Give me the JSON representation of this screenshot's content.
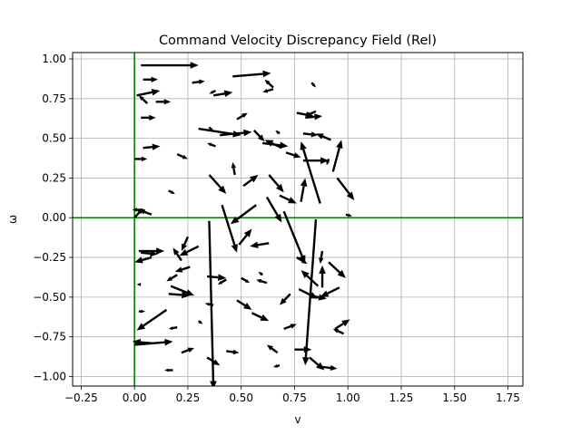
{
  "chart_data": {
    "type": "quiver",
    "title": "Command Velocity Discrepancy Field (Rel)",
    "xlabel": "v",
    "ylabel": "ω",
    "xlim": [
      -0.29,
      1.82
    ],
    "ylim": [
      -1.06,
      1.04
    ],
    "grid": true,
    "xticks": [
      -0.25,
      0.0,
      0.25,
      0.5,
      0.75,
      1.0,
      1.25,
      1.5,
      1.75
    ],
    "xtick_labels": [
      "−0.25",
      "0.00",
      "0.25",
      "0.50",
      "0.75",
      "1.00",
      "1.25",
      "1.50",
      "1.75"
    ],
    "yticks": [
      1.0,
      0.75,
      0.5,
      0.25,
      0.0,
      -0.25,
      -0.5,
      -0.75,
      -1.0
    ],
    "ytick_labels": [
      "1.00",
      "0.75",
      "0.50",
      "0.25",
      "0.00",
      "−0.25",
      "−0.50",
      "−0.75",
      "−1.00"
    ],
    "reference_lines": [
      {
        "orientation": "vertical",
        "value": 0.0,
        "color": "#008000"
      },
      {
        "orientation": "horizontal",
        "value": 0.0,
        "color": "#008000"
      }
    ],
    "arrow_color": "#000000",
    "arrows": [
      {
        "x": 0.03,
        "y": 0.96,
        "dx": 0.27,
        "dy": 0.0
      },
      {
        "x": 0.04,
        "y": 0.87,
        "dx": 0.07,
        "dy": 0.0
      },
      {
        "x": 0.27,
        "y": 0.85,
        "dx": 0.06,
        "dy": 0.01
      },
      {
        "x": 0.46,
        "y": 0.89,
        "dx": 0.18,
        "dy": 0.02
      },
      {
        "x": 0.65,
        "y": 0.82,
        "dx": -0.04,
        "dy": 0.05
      },
      {
        "x": 0.83,
        "y": 0.85,
        "dx": 0.02,
        "dy": -0.03
      },
      {
        "x": 0.01,
        "y": 0.77,
        "dx": 0.11,
        "dy": 0.03
      },
      {
        "x": 0.06,
        "y": 0.72,
        "dx": -0.04,
        "dy": 0.05
      },
      {
        "x": 0.1,
        "y": 0.73,
        "dx": 0.07,
        "dy": 0.0
      },
      {
        "x": 0.38,
        "y": 0.8,
        "dx": -0.03,
        "dy": -0.02
      },
      {
        "x": 0.37,
        "y": 0.77,
        "dx": 0.09,
        "dy": 0.02
      },
      {
        "x": 0.65,
        "y": 0.81,
        "dx": -0.05,
        "dy": -0.02
      },
      {
        "x": 0.03,
        "y": 0.63,
        "dx": 0.07,
        "dy": 0.0
      },
      {
        "x": 0.48,
        "y": 0.62,
        "dx": 0.05,
        "dy": 0.04
      },
      {
        "x": 0.76,
        "y": 0.66,
        "dx": 0.08,
        "dy": -0.02
      },
      {
        "x": 0.8,
        "y": 0.63,
        "dx": 0.08,
        "dy": 0.01
      },
      {
        "x": 0.85,
        "y": 0.67,
        "dx": -0.05,
        "dy": -0.03
      },
      {
        "x": 0.3,
        "y": 0.56,
        "dx": 0.2,
        "dy": -0.04
      },
      {
        "x": 0.35,
        "y": 0.57,
        "dx": 0.02,
        "dy": -0.03
      },
      {
        "x": 0.4,
        "y": 0.52,
        "dx": 0.15,
        "dy": 0.02
      },
      {
        "x": 0.56,
        "y": 0.55,
        "dx": 0.05,
        "dy": -0.07
      },
      {
        "x": 0.6,
        "y": 0.47,
        "dx": 0.12,
        "dy": -0.02
      },
      {
        "x": 0.68,
        "y": 0.53,
        "dx": -0.02,
        "dy": 0.02
      },
      {
        "x": 0.79,
        "y": 0.53,
        "dx": 0.07,
        "dy": -0.01
      },
      {
        "x": 0.92,
        "y": 0.49,
        "dx": -0.07,
        "dy": 0.04
      },
      {
        "x": 0.04,
        "y": 0.44,
        "dx": 0.08,
        "dy": 0.01
      },
      {
        "x": 0.38,
        "y": 0.45,
        "dx": -0.04,
        "dy": 0.02
      },
      {
        "x": 0.69,
        "y": 0.44,
        "dx": -0.08,
        "dy": 0.05
      },
      {
        "x": 0.71,
        "y": 0.41,
        "dx": 0.07,
        "dy": -0.03
      },
      {
        "x": 0.0,
        "y": 0.37,
        "dx": 0.06,
        "dy": 0.0
      },
      {
        "x": 0.2,
        "y": 0.4,
        "dx": 0.05,
        "dy": -0.03
      },
      {
        "x": 0.79,
        "y": 0.36,
        "dx": 0.12,
        "dy": 0.0
      },
      {
        "x": 0.91,
        "y": 0.37,
        "dx": -0.01,
        "dy": -0.04
      },
      {
        "x": 0.87,
        "y": 0.09,
        "dx": -0.09,
        "dy": 0.39
      },
      {
        "x": 0.93,
        "y": 0.29,
        "dx": 0.04,
        "dy": 0.2
      },
      {
        "x": 0.95,
        "y": 0.25,
        "dx": 0.08,
        "dy": -0.14
      },
      {
        "x": 0.35,
        "y": 0.27,
        "dx": 0.08,
        "dy": -0.12
      },
      {
        "x": 0.47,
        "y": 0.27,
        "dx": -0.01,
        "dy": 0.08
      },
      {
        "x": 0.51,
        "y": 0.2,
        "dx": 0.07,
        "dy": 0.07
      },
      {
        "x": 0.63,
        "y": 0.27,
        "dx": 0.07,
        "dy": -0.11
      },
      {
        "x": 0.68,
        "y": 0.14,
        "dx": 0.08,
        "dy": -0.05
      },
      {
        "x": 0.78,
        "y": 0.1,
        "dx": 0.02,
        "dy": 0.15
      },
      {
        "x": 0.16,
        "y": 0.17,
        "dx": 0.03,
        "dy": -0.02
      },
      {
        "x": 0.41,
        "y": 0.08,
        "dx": 0.07,
        "dy": -0.3
      },
      {
        "x": 0.62,
        "y": 0.13,
        "dx": 0.07,
        "dy": -0.16
      },
      {
        "x": 0.57,
        "y": 0.08,
        "dx": -0.12,
        "dy": -0.12
      },
      {
        "x": 0.7,
        "y": 0.04,
        "dx": 0.1,
        "dy": -0.33
      },
      {
        "x": 0.0,
        "y": 0.0,
        "dx": 0.04,
        "dy": 0.06
      },
      {
        "x": 0.04,
        "y": 0.05,
        "dx": -0.05,
        "dy": 0.0
      },
      {
        "x": 0.08,
        "y": 0.02,
        "dx": -0.06,
        "dy": 0.03
      },
      {
        "x": 0.99,
        "y": 0.02,
        "dx": 0.03,
        "dy": -0.01
      },
      {
        "x": 0.35,
        "y": -0.02,
        "dx": 0.02,
        "dy": -1.06
      },
      {
        "x": 0.85,
        "y": -0.01,
        "dx": -0.05,
        "dy": -0.92
      },
      {
        "x": 0.25,
        "y": -0.12,
        "dx": -0.03,
        "dy": -0.09
      },
      {
        "x": 0.49,
        "y": -0.17,
        "dx": 0.06,
        "dy": 0.1
      },
      {
        "x": 0.63,
        "y": -0.16,
        "dx": -0.09,
        "dy": -0.02
      },
      {
        "x": 0.02,
        "y": -0.21,
        "dx": 0.12,
        "dy": 0.0
      },
      {
        "x": 0.03,
        "y": -0.22,
        "dx": 0.08,
        "dy": -0.01
      },
      {
        "x": 0.3,
        "y": -0.18,
        "dx": -0.09,
        "dy": -0.06
      },
      {
        "x": 0.08,
        "y": -0.25,
        "dx": -0.08,
        "dy": -0.03
      },
      {
        "x": 0.22,
        "y": -0.27,
        "dx": -0.04,
        "dy": 0.08
      },
      {
        "x": 0.76,
        "y": -0.25,
        "dx": 0.05,
        "dy": -0.04
      },
      {
        "x": 0.88,
        "y": -0.21,
        "dx": -0.01,
        "dy": -0.08
      },
      {
        "x": 0.91,
        "y": -0.28,
        "dx": 0.08,
        "dy": -0.1
      },
      {
        "x": 0.26,
        "y": -0.31,
        "dx": -0.07,
        "dy": -0.03
      },
      {
        "x": 0.2,
        "y": -0.36,
        "dx": -0.05,
        "dy": -0.04
      },
      {
        "x": 0.86,
        "y": -0.43,
        "dx": -0.08,
        "dy": 0.1
      },
      {
        "x": 0.88,
        "y": -0.44,
        "dx": 0.0,
        "dy": 0.14
      },
      {
        "x": 0.34,
        "y": -0.37,
        "dx": 0.09,
        "dy": -0.01
      },
      {
        "x": 0.43,
        "y": -0.39,
        "dx": -0.04,
        "dy": -0.03
      },
      {
        "x": 0.5,
        "y": -0.38,
        "dx": 0.04,
        "dy": -0.03
      },
      {
        "x": 0.62,
        "y": -0.41,
        "dx": -0.05,
        "dy": 0.02
      },
      {
        "x": 0.6,
        "y": -0.36,
        "dx": -0.02,
        "dy": 0.02
      },
      {
        "x": 0.03,
        "y": -0.42,
        "dx": -0.02,
        "dy": 0.0
      },
      {
        "x": 0.17,
        "y": -0.43,
        "dx": 0.11,
        "dy": -0.06
      },
      {
        "x": 0.16,
        "y": -0.48,
        "dx": 0.1,
        "dy": -0.01
      },
      {
        "x": 0.37,
        "y": -0.55,
        "dx": -0.04,
        "dy": 0.01
      },
      {
        "x": 0.77,
        "y": -0.45,
        "dx": 0.09,
        "dy": -0.06
      },
      {
        "x": 0.82,
        "y": -0.49,
        "dx": 0.08,
        "dy": -0.02
      },
      {
        "x": 0.96,
        "y": -0.44,
        "dx": -0.09,
        "dy": -0.06
      },
      {
        "x": 0.48,
        "y": -0.52,
        "dx": 0.07,
        "dy": -0.06
      },
      {
        "x": 0.73,
        "y": -0.48,
        "dx": -0.05,
        "dy": -0.07
      },
      {
        "x": 0.02,
        "y": -0.59,
        "dx": 0.03,
        "dy": 0.0
      },
      {
        "x": 0.55,
        "y": -0.6,
        "dx": 0.08,
        "dy": -0.05
      },
      {
        "x": 0.15,
        "y": -0.58,
        "dx": -0.14,
        "dy": -0.13
      },
      {
        "x": 0.2,
        "y": -0.69,
        "dx": -0.04,
        "dy": -0.01
      },
      {
        "x": 0.3,
        "y": -0.65,
        "dx": 0.02,
        "dy": -0.02
      },
      {
        "x": 0.7,
        "y": -0.7,
        "dx": 0.06,
        "dy": 0.03
      },
      {
        "x": 0.94,
        "y": -0.7,
        "dx": 0.07,
        "dy": 0.06
      },
      {
        "x": 0.98,
        "y": -0.73,
        "dx": -0.05,
        "dy": 0.03
      },
      {
        "x": 0.0,
        "y": -0.8,
        "dx": 0.18,
        "dy": 0.02
      },
      {
        "x": 0.08,
        "y": -0.79,
        "dx": -0.09,
        "dy": 0.01
      },
      {
        "x": 0.22,
        "y": -0.85,
        "dx": 0.06,
        "dy": 0.03
      },
      {
        "x": 0.43,
        "y": -0.84,
        "dx": 0.06,
        "dy": -0.01
      },
      {
        "x": 0.67,
        "y": -0.85,
        "dx": -0.05,
        "dy": 0.05
      },
      {
        "x": 0.75,
        "y": -0.83,
        "dx": 0.08,
        "dy": 0.0
      },
      {
        "x": 0.82,
        "y": -0.88,
        "dx": 0.07,
        "dy": -0.08
      },
      {
        "x": 0.88,
        "y": -0.94,
        "dx": 0.07,
        "dy": -0.01
      },
      {
        "x": 0.34,
        "y": -0.88,
        "dx": 0.06,
        "dy": -0.05
      },
      {
        "x": 0.68,
        "y": -0.93,
        "dx": -0.03,
        "dy": -0.01
      },
      {
        "x": 0.18,
        "y": -0.96,
        "dx": -0.04,
        "dy": 0.0
      }
    ]
  }
}
